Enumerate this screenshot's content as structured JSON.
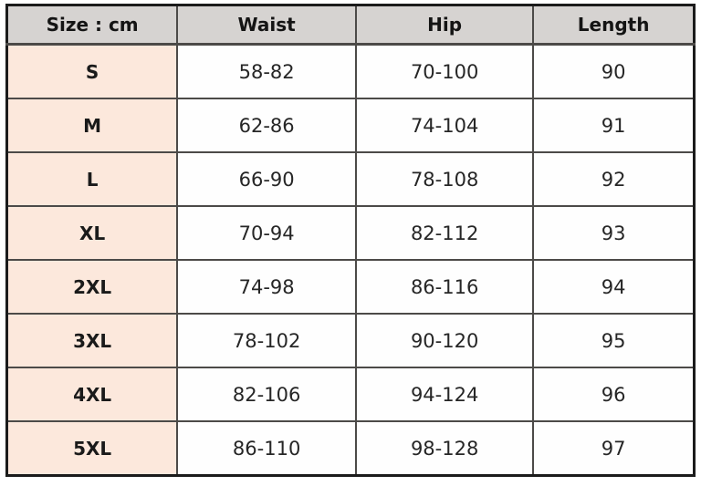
{
  "table": {
    "headers": {
      "size": "Size : cm",
      "waist": "Waist",
      "hip": "Hip",
      "length": "Length"
    },
    "rows": [
      {
        "size": "S",
        "waist": "58-82",
        "hip": "70-100",
        "length": "90"
      },
      {
        "size": "M",
        "waist": "62-86",
        "hip": "74-104",
        "length": "91"
      },
      {
        "size": "L",
        "waist": "66-90",
        "hip": "78-108",
        "length": "92"
      },
      {
        "size": "XL",
        "waist": "70-94",
        "hip": "82-112",
        "length": "93"
      },
      {
        "size": "2XL",
        "waist": "74-98",
        "hip": "86-116",
        "length": "94"
      },
      {
        "size": "3XL",
        "waist": "78-102",
        "hip": "90-120",
        "length": "95"
      },
      {
        "size": "4XL",
        "waist": "82-106",
        "hip": "94-124",
        "length": "96"
      },
      {
        "size": "5XL",
        "waist": "86-110",
        "hip": "98-128",
        "length": "97"
      }
    ],
    "unit": "cm"
  },
  "colors": {
    "header_bg": "#d6d3d1",
    "size_column_bg": "#fce8dc",
    "grid_border": "#4c4a48",
    "outer_border": "#1b1b1b",
    "text": "#262626"
  }
}
